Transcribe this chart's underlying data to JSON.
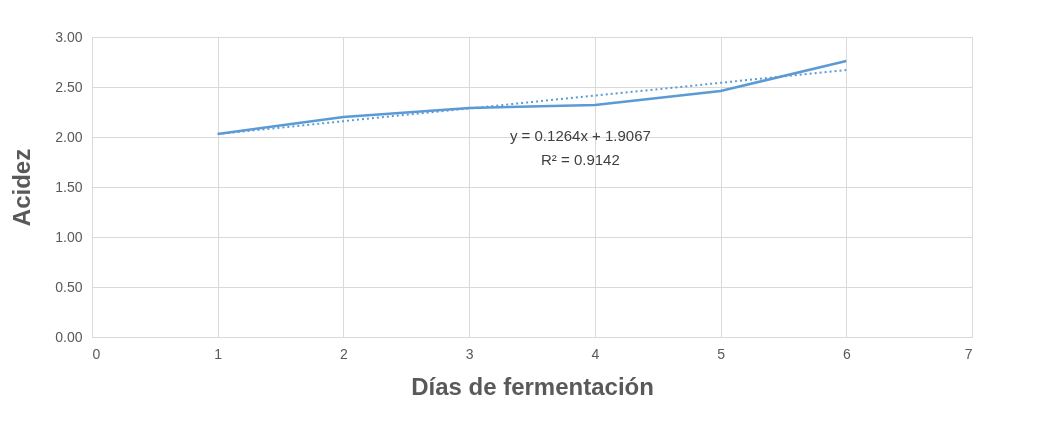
{
  "chart_data": {
    "type": "line",
    "xlabel": "Días de fermentación",
    "ylabel": "Acidez",
    "x": [
      1,
      2,
      3,
      4,
      5,
      6
    ],
    "series": [
      {
        "color": "#5b9bd5",
        "values": [
          2.03,
          2.2,
          2.29,
          2.32,
          2.46,
          2.76
        ]
      },
      {
        "type": "line",
        "color": "#5b9bd5",
        "line_style": "dotted",
        "x": [
          1,
          6
        ],
        "values": [
          2.03,
          2.67
        ]
      }
    ],
    "annotations": [
      "y = 0.1264x + 1.9067",
      "R² = 0.9142"
    ],
    "xlim": [
      0,
      7
    ],
    "xticks": [
      0,
      1,
      2,
      3,
      4,
      5,
      6,
      7
    ],
    "ylim": [
      0,
      3
    ],
    "yticks": [
      {
        "value": 0,
        "label": "0.00"
      },
      {
        "value": 0.5,
        "label": "0.50"
      },
      {
        "value": 1,
        "label": "1.00"
      },
      {
        "value": 1.5,
        "label": "1.50"
      },
      {
        "value": 2,
        "label": "2.00"
      },
      {
        "value": 2.5,
        "label": "2.50"
      },
      {
        "value": 3,
        "label": "3.00"
      }
    ],
    "grid": true,
    "line_style": "solid",
    "marker": "none"
  }
}
